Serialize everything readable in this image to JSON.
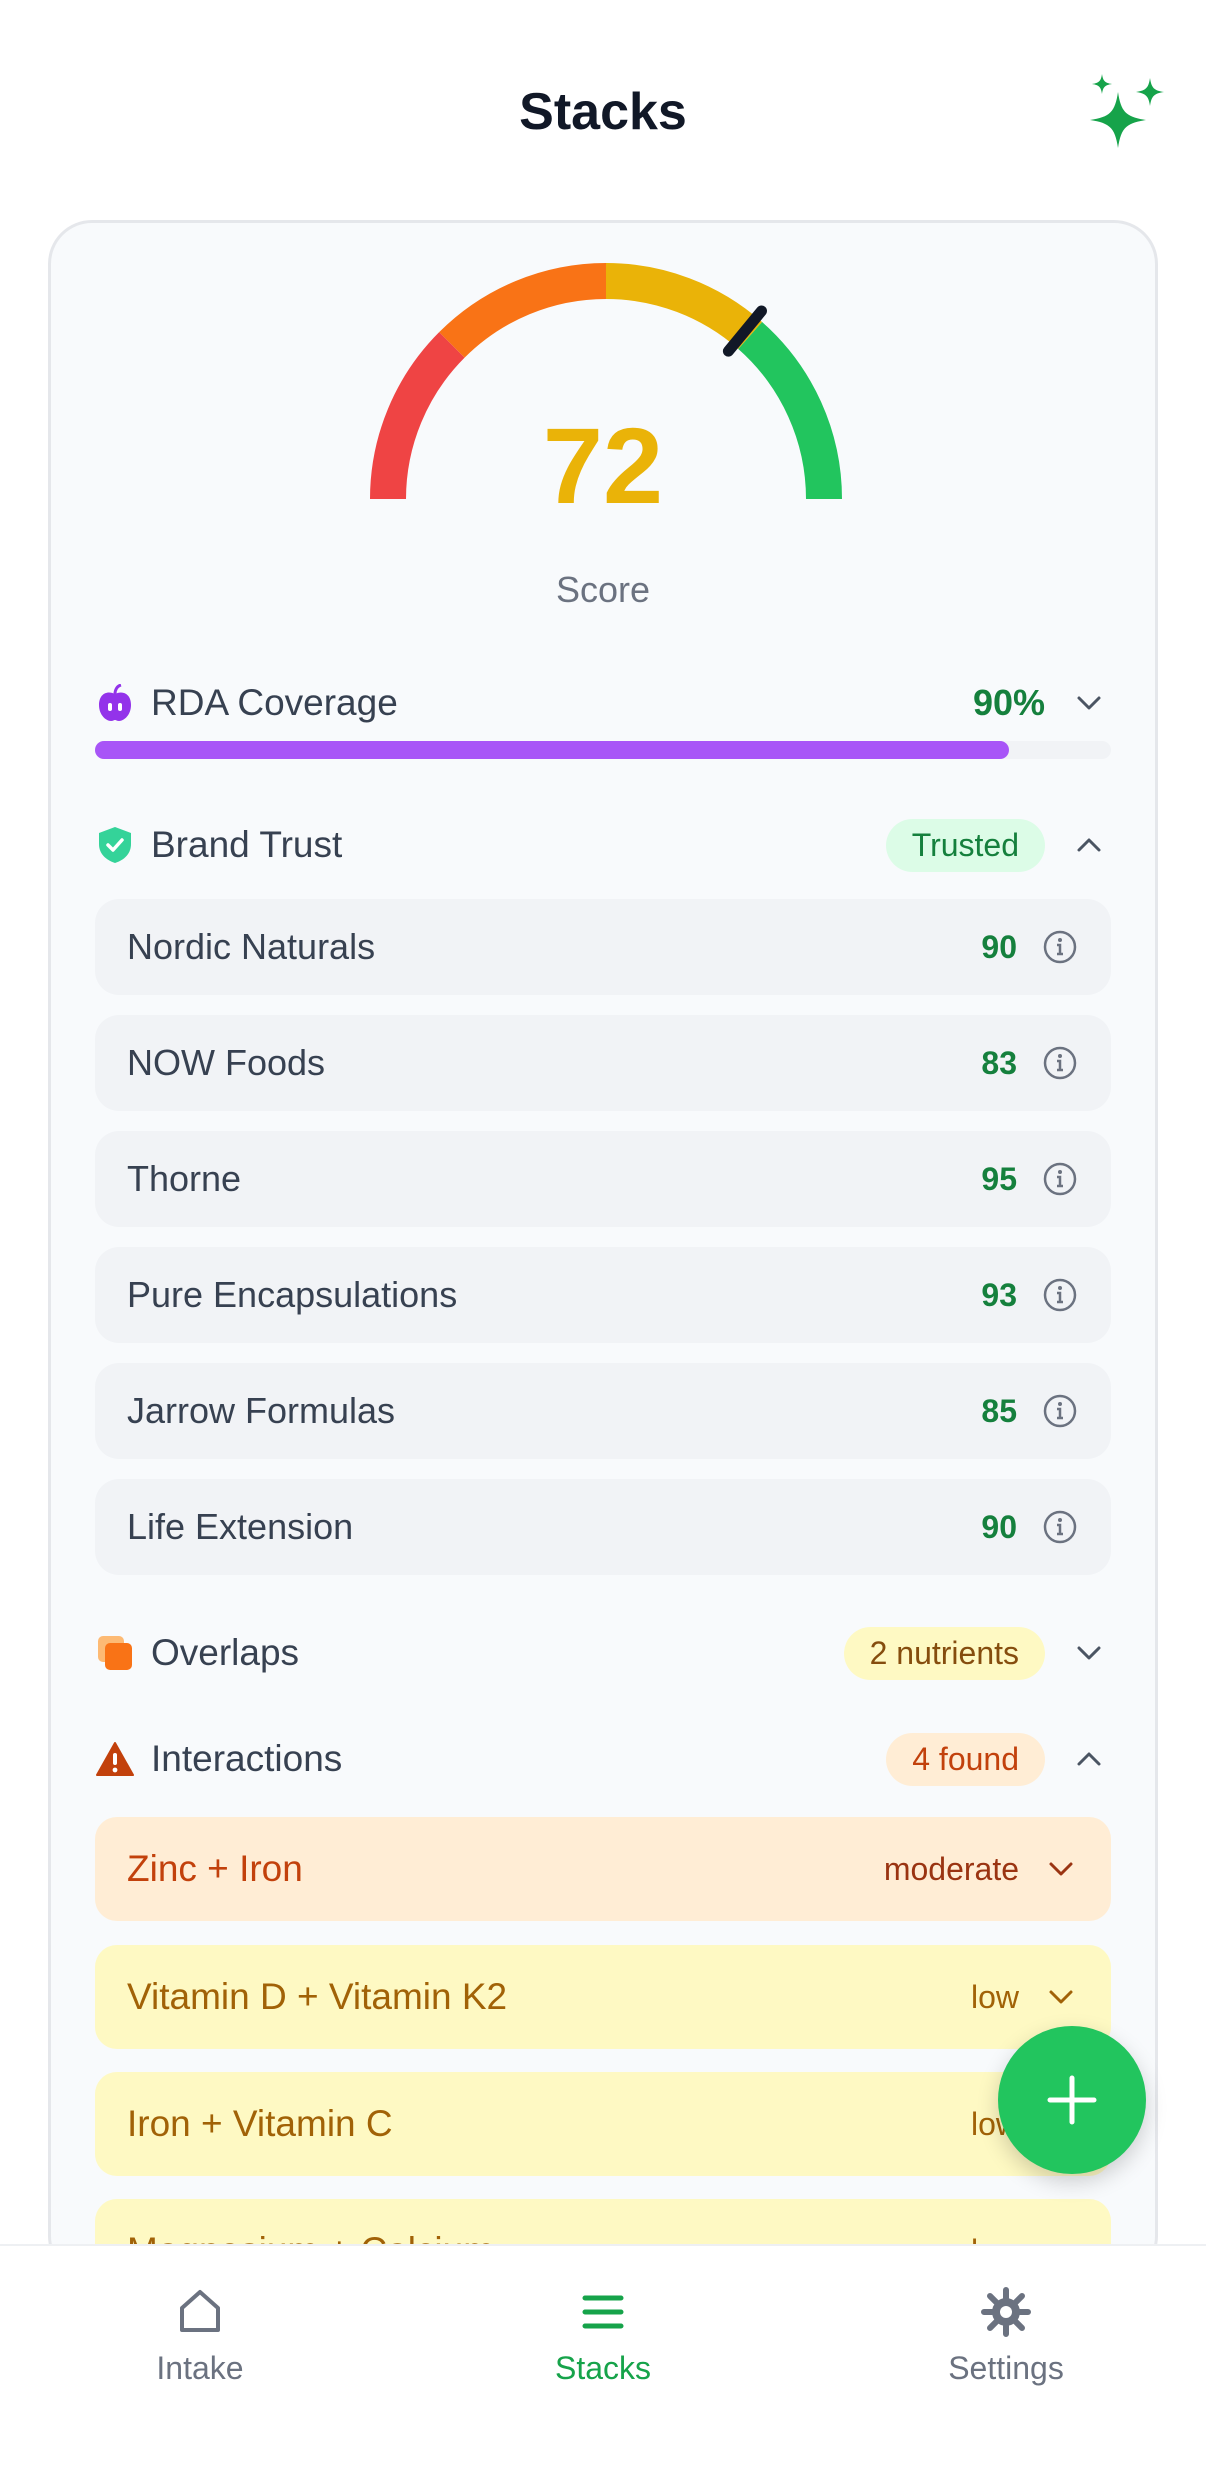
{
  "header": {
    "title": "Stacks",
    "sparkle_icon": "sparkles-icon"
  },
  "score": {
    "value": "72",
    "label": "Score",
    "gauge_fraction": 0.72
  },
  "rda": {
    "title": "RDA Coverage",
    "percent_text": "90%",
    "progress": 0.9,
    "icon": "apple-icon"
  },
  "brand_trust": {
    "title": "Brand Trust",
    "badge": "Trusted",
    "icon": "shield-check-icon",
    "brands": [
      {
        "name": "Nordic Naturals",
        "score": "90"
      },
      {
        "name": "NOW Foods",
        "score": "83"
      },
      {
        "name": "Thorne",
        "score": "95"
      },
      {
        "name": "Pure Encapsulations",
        "score": "93"
      },
      {
        "name": "Jarrow Formulas",
        "score": "85"
      },
      {
        "name": "Life Extension",
        "score": "90"
      }
    ]
  },
  "overlaps": {
    "title": "Overlaps",
    "badge": "2 nutrients",
    "icon": "layers-icon"
  },
  "interactions": {
    "title": "Interactions",
    "badge": "4 found",
    "icon": "warning-icon",
    "items": [
      {
        "name": "Zinc + Iron",
        "severity": "moderate"
      },
      {
        "name": "Vitamin D + Vitamin K2",
        "severity": "low"
      },
      {
        "name": "Iron + Vitamin C",
        "severity": "low"
      },
      {
        "name": "Magnesium + Calcium",
        "severity": "low"
      }
    ]
  },
  "tabs": [
    {
      "label": "Intake",
      "icon": "home-icon"
    },
    {
      "label": "Stacks",
      "icon": "menu-lines-icon"
    },
    {
      "label": "Settings",
      "icon": "gear-icon"
    }
  ],
  "colors": {
    "accent": "#22c55e",
    "score": "#eab308",
    "progress": "#a855f7",
    "gauge": [
      "#ef4444",
      "#f97316",
      "#eab308",
      "#22c55e"
    ]
  }
}
